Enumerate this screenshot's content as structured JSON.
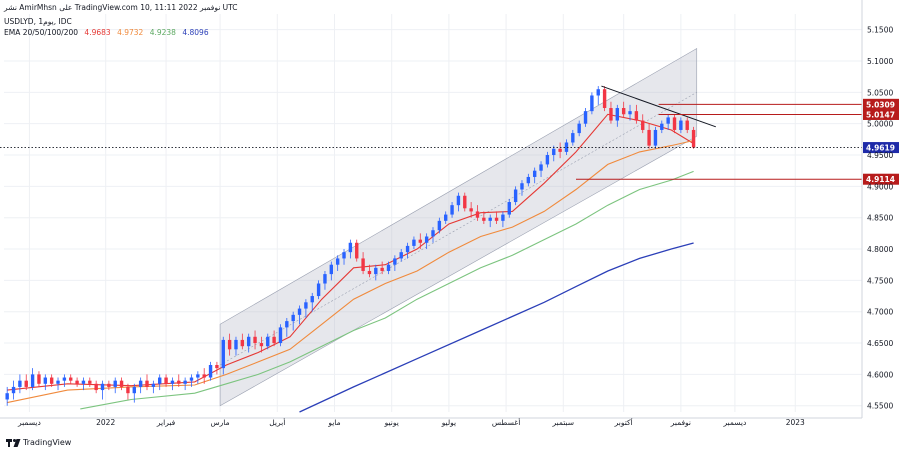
{
  "header": {
    "top_line": "نشر AmirMhsn على TradingView.com 10, نوفمبر 2022 11:11 UTC",
    "symbol_line": "USDLYD, 1يوم, IDC",
    "ema_label": "EMA 20/50/100/200",
    "ema_values": [
      "4.9683",
      "4.9732",
      "4.9238",
      "4.8096"
    ]
  },
  "watermark": "TradingView",
  "colors": {
    "up": "#2962ff",
    "down": "#f23645",
    "ema20": "#e53935",
    "ema50": "#f08a3c",
    "ema100": "#7cc47f",
    "ema200": "#2b3fb8",
    "channel": "#b8bbc8",
    "label_red": "#b71c1c",
    "label_blue": "#1e2aa8",
    "grid": "#eef0f4",
    "axis_text": "#131722"
  },
  "chart_data": {
    "type": "candlestick",
    "title": "USDLYD, 1يوم, IDC",
    "ylim": [
      4.54,
      5.175
    ],
    "y_ticks": [
      4.55,
      4.6,
      4.65,
      4.7,
      4.75,
      4.8,
      4.85,
      4.9,
      4.95,
      5.0,
      5.05,
      5.1,
      5.15
    ],
    "y_tick_labels": [
      "4.5500",
      "4.6000",
      "4.6500",
      "4.7000",
      "4.7500",
      "4.8000",
      "4.8500",
      "4.9000",
      "4.9500",
      "5.0000",
      "5.0500",
      "5.1000",
      "5.1500"
    ],
    "x_range_months": [
      0,
      13.5
    ],
    "x_ticks": [
      {
        "pos": 0.4,
        "label": "ديسمبر"
      },
      {
        "pos": 1.6,
        "label": "2022"
      },
      {
        "pos": 2.55,
        "label": "فبراير"
      },
      {
        "pos": 3.4,
        "label": "مارس"
      },
      {
        "pos": 4.3,
        "label": "أبريل"
      },
      {
        "pos": 5.2,
        "label": "مايو"
      },
      {
        "pos": 6.1,
        "label": "يونيو"
      },
      {
        "pos": 7.0,
        "label": "يوليو"
      },
      {
        "pos": 7.9,
        "label": "أغسطس"
      },
      {
        "pos": 8.8,
        "label": "سبتمبر"
      },
      {
        "pos": 9.75,
        "label": "أكتوبر"
      },
      {
        "pos": 10.65,
        "label": "نوفمبر"
      },
      {
        "pos": 11.5,
        "label": "ديسمبر"
      },
      {
        "pos": 12.45,
        "label": "2023"
      }
    ],
    "ohlc": [
      [
        0.05,
        4.56,
        4.58,
        4.55,
        4.57
      ],
      [
        0.15,
        4.57,
        4.59,
        4.56,
        4.58
      ],
      [
        0.25,
        4.58,
        4.6,
        4.57,
        4.59
      ],
      [
        0.35,
        4.59,
        4.6,
        4.575,
        4.58
      ],
      [
        0.45,
        4.58,
        4.61,
        4.575,
        4.6
      ],
      [
        0.55,
        4.6,
        4.605,
        4.58,
        4.585
      ],
      [
        0.65,
        4.585,
        4.6,
        4.575,
        4.595
      ],
      [
        0.75,
        4.595,
        4.6,
        4.58,
        4.585
      ],
      [
        0.85,
        4.585,
        4.595,
        4.575,
        4.59
      ],
      [
        0.95,
        4.59,
        4.6,
        4.58,
        4.595
      ],
      [
        1.05,
        4.595,
        4.6,
        4.585,
        4.59
      ],
      [
        1.15,
        4.59,
        4.595,
        4.58,
        4.585
      ],
      [
        1.25,
        4.585,
        4.595,
        4.575,
        4.59
      ],
      [
        1.35,
        4.59,
        4.595,
        4.58,
        4.585
      ],
      [
        1.45,
        4.585,
        4.59,
        4.57,
        4.575
      ],
      [
        1.55,
        4.575,
        4.59,
        4.56,
        4.585
      ],
      [
        1.65,
        4.585,
        4.59,
        4.575,
        4.58
      ],
      [
        1.75,
        4.58,
        4.595,
        4.57,
        4.59
      ],
      [
        1.85,
        4.59,
        4.595,
        4.575,
        4.58
      ],
      [
        1.95,
        4.58,
        4.585,
        4.56,
        4.57
      ],
      [
        2.05,
        4.57,
        4.585,
        4.555,
        4.58
      ],
      [
        2.15,
        4.58,
        4.595,
        4.57,
        4.59
      ],
      [
        2.25,
        4.59,
        4.6,
        4.575,
        4.58
      ],
      [
        2.35,
        4.58,
        4.59,
        4.57,
        4.585
      ],
      [
        2.45,
        4.585,
        4.6,
        4.575,
        4.595
      ],
      [
        2.55,
        4.595,
        4.6,
        4.58,
        4.585
      ],
      [
        2.65,
        4.585,
        4.595,
        4.575,
        4.59
      ],
      [
        2.75,
        4.59,
        4.6,
        4.58,
        4.585
      ],
      [
        2.85,
        4.585,
        4.595,
        4.575,
        4.59
      ],
      [
        2.95,
        4.59,
        4.6,
        4.58,
        4.595
      ],
      [
        3.05,
        4.595,
        4.605,
        4.585,
        4.6
      ],
      [
        3.15,
        4.6,
        4.61,
        4.585,
        4.595
      ],
      [
        3.25,
        4.595,
        4.62,
        4.59,
        4.615
      ],
      [
        3.35,
        4.615,
        4.62,
        4.6,
        4.61
      ],
      [
        3.45,
        4.61,
        4.66,
        4.6,
        4.655
      ],
      [
        3.55,
        4.655,
        4.665,
        4.63,
        4.64
      ],
      [
        3.65,
        4.64,
        4.66,
        4.63,
        4.655
      ],
      [
        3.75,
        4.655,
        4.665,
        4.64,
        4.645
      ],
      [
        3.85,
        4.645,
        4.665,
        4.635,
        4.66
      ],
      [
        3.95,
        4.66,
        4.67,
        4.64,
        4.65
      ],
      [
        4.05,
        4.65,
        4.66,
        4.635,
        4.645
      ],
      [
        4.15,
        4.645,
        4.665,
        4.64,
        4.66
      ],
      [
        4.25,
        4.66,
        4.67,
        4.645,
        4.65
      ],
      [
        4.35,
        4.65,
        4.68,
        4.645,
        4.675
      ],
      [
        4.45,
        4.675,
        4.69,
        4.66,
        4.685
      ],
      [
        4.55,
        4.685,
        4.7,
        4.67,
        4.695
      ],
      [
        4.65,
        4.695,
        4.71,
        4.68,
        4.705
      ],
      [
        4.75,
        4.705,
        4.72,
        4.69,
        4.715
      ],
      [
        4.85,
        4.715,
        4.73,
        4.7,
        4.725
      ],
      [
        4.95,
        4.725,
        4.75,
        4.72,
        4.745
      ],
      [
        5.05,
        4.745,
        4.765,
        4.735,
        4.76
      ],
      [
        5.15,
        4.76,
        4.78,
        4.75,
        4.775
      ],
      [
        5.25,
        4.775,
        4.79,
        4.765,
        4.785
      ],
      [
        5.35,
        4.785,
        4.8,
        4.775,
        4.795
      ],
      [
        5.45,
        4.795,
        4.815,
        4.785,
        4.81
      ],
      [
        5.55,
        4.81,
        4.815,
        4.78,
        4.785
      ],
      [
        5.65,
        4.785,
        4.795,
        4.76,
        4.765
      ],
      [
        5.75,
        4.765,
        4.775,
        4.755,
        4.76
      ],
      [
        5.85,
        4.76,
        4.775,
        4.75,
        4.77
      ],
      [
        5.95,
        4.77,
        4.78,
        4.76,
        4.765
      ],
      [
        6.05,
        4.765,
        4.78,
        4.76,
        4.775
      ],
      [
        6.15,
        4.775,
        4.79,
        4.765,
        4.785
      ],
      [
        6.25,
        4.785,
        4.8,
        4.78,
        4.795
      ],
      [
        6.35,
        4.795,
        4.81,
        4.785,
        4.805
      ],
      [
        6.45,
        4.805,
        4.82,
        4.8,
        4.815
      ],
      [
        6.55,
        4.815,
        4.825,
        4.8,
        4.81
      ],
      [
        6.65,
        4.81,
        4.825,
        4.8,
        4.82
      ],
      [
        6.75,
        4.82,
        4.835,
        4.81,
        4.83
      ],
      [
        6.85,
        4.83,
        4.85,
        4.825,
        4.845
      ],
      [
        6.95,
        4.845,
        4.86,
        4.84,
        4.855
      ],
      [
        7.05,
        4.855,
        4.875,
        4.85,
        4.87
      ],
      [
        7.15,
        4.87,
        4.89,
        4.86,
        4.885
      ],
      [
        7.25,
        4.885,
        4.89,
        4.86,
        4.865
      ],
      [
        7.35,
        4.865,
        4.875,
        4.85,
        4.86
      ],
      [
        7.45,
        4.86,
        4.87,
        4.845,
        4.85
      ],
      [
        7.55,
        4.85,
        4.86,
        4.84,
        4.845
      ],
      [
        7.65,
        4.845,
        4.855,
        4.835,
        4.85
      ],
      [
        7.75,
        4.85,
        4.86,
        4.84,
        4.845
      ],
      [
        7.85,
        4.845,
        4.86,
        4.835,
        4.855
      ],
      [
        7.95,
        4.855,
        4.88,
        4.85,
        4.875
      ],
      [
        8.05,
        4.875,
        4.9,
        4.87,
        4.895
      ],
      [
        8.15,
        4.895,
        4.91,
        4.885,
        4.905
      ],
      [
        8.25,
        4.905,
        4.92,
        4.9,
        4.915
      ],
      [
        8.35,
        4.915,
        4.93,
        4.905,
        4.925
      ],
      [
        8.45,
        4.925,
        4.94,
        4.915,
        4.935
      ],
      [
        8.55,
        4.935,
        4.955,
        4.93,
        4.95
      ],
      [
        8.65,
        4.95,
        4.965,
        4.94,
        4.96
      ],
      [
        8.75,
        4.96,
        4.97,
        4.945,
        4.955
      ],
      [
        8.85,
        4.955,
        4.975,
        4.95,
        4.97
      ],
      [
        8.95,
        4.97,
        4.99,
        4.965,
        4.985
      ],
      [
        9.05,
        4.985,
        5.005,
        4.98,
        5.0
      ],
      [
        9.15,
        5.0,
        5.025,
        4.995,
        5.02
      ],
      [
        9.25,
        5.02,
        5.05,
        5.015,
        5.045
      ],
      [
        9.35,
        5.045,
        5.06,
        5.03,
        5.055
      ],
      [
        9.45,
        5.055,
        5.06,
        5.02,
        5.025
      ],
      [
        9.55,
        5.025,
        5.035,
        5.0,
        5.005
      ],
      [
        9.65,
        5.005,
        5.03,
        4.995,
        5.025
      ],
      [
        9.75,
        5.025,
        5.035,
        5.01,
        5.015
      ],
      [
        9.85,
        5.015,
        5.03,
        5.005,
        5.02
      ],
      [
        9.95,
        5.02,
        5.03,
        5.0,
        5.005
      ],
      [
        10.05,
        5.005,
        5.015,
        4.985,
        4.99
      ],
      [
        10.15,
        4.99,
        5.0,
        4.96,
        4.965
      ],
      [
        10.25,
        4.965,
        4.995,
        4.96,
        4.99
      ],
      [
        10.35,
        4.99,
        5.005,
        4.985,
        5.0
      ],
      [
        10.45,
        5.0,
        5.015,
        4.99,
        5.01
      ],
      [
        10.55,
        5.01,
        5.015,
        4.985,
        4.99
      ],
      [
        10.65,
        4.99,
        5.01,
        4.985,
        5.005
      ],
      [
        10.75,
        5.005,
        5.01,
        4.985,
        4.99
      ],
      [
        10.85,
        4.99,
        4.995,
        4.96,
        4.962
      ]
    ],
    "ema20": [
      [
        0.05,
        4.575
      ],
      [
        1.0,
        4.585
      ],
      [
        2.0,
        4.582
      ],
      [
        3.0,
        4.588
      ],
      [
        3.5,
        4.615
      ],
      [
        4.0,
        4.635
      ],
      [
        4.5,
        4.66
      ],
      [
        5.0,
        4.72
      ],
      [
        5.5,
        4.77
      ],
      [
        6.0,
        4.775
      ],
      [
        6.5,
        4.8
      ],
      [
        7.0,
        4.84
      ],
      [
        7.5,
        4.858
      ],
      [
        8.0,
        4.86
      ],
      [
        8.5,
        4.905
      ],
      [
        9.0,
        4.955
      ],
      [
        9.5,
        5.015
      ],
      [
        10.0,
        5.005
      ],
      [
        10.5,
        4.99
      ],
      [
        10.85,
        4.9683
      ]
    ],
    "ema50": [
      [
        0.05,
        4.555
      ],
      [
        1.0,
        4.575
      ],
      [
        2.0,
        4.58
      ],
      [
        3.0,
        4.583
      ],
      [
        3.5,
        4.6
      ],
      [
        4.0,
        4.62
      ],
      [
        4.5,
        4.64
      ],
      [
        5.0,
        4.68
      ],
      [
        5.5,
        4.72
      ],
      [
        6.0,
        4.745
      ],
      [
        6.5,
        4.765
      ],
      [
        7.0,
        4.795
      ],
      [
        7.5,
        4.82
      ],
      [
        8.0,
        4.835
      ],
      [
        8.5,
        4.86
      ],
      [
        9.0,
        4.895
      ],
      [
        9.5,
        4.935
      ],
      [
        10.0,
        4.955
      ],
      [
        10.5,
        4.965
      ],
      [
        10.85,
        4.9732
      ]
    ],
    "ema100": [
      [
        1.2,
        4.545
      ],
      [
        2.0,
        4.56
      ],
      [
        3.0,
        4.57
      ],
      [
        3.5,
        4.585
      ],
      [
        4.0,
        4.6
      ],
      [
        4.5,
        4.62
      ],
      [
        5.0,
        4.645
      ],
      [
        5.5,
        4.67
      ],
      [
        6.0,
        4.69
      ],
      [
        6.5,
        4.72
      ],
      [
        7.0,
        4.745
      ],
      [
        7.5,
        4.77
      ],
      [
        8.0,
        4.79
      ],
      [
        8.5,
        4.815
      ],
      [
        9.0,
        4.84
      ],
      [
        9.5,
        4.87
      ],
      [
        10.0,
        4.895
      ],
      [
        10.5,
        4.91
      ],
      [
        10.85,
        4.9238
      ]
    ],
    "ema200": [
      [
        4.65,
        4.54
      ],
      [
        5.5,
        4.58
      ],
      [
        6.5,
        4.625
      ],
      [
        7.5,
        4.67
      ],
      [
        8.5,
        4.715
      ],
      [
        9.0,
        4.74
      ],
      [
        9.5,
        4.765
      ],
      [
        10.0,
        4.785
      ],
      [
        10.5,
        4.8
      ],
      [
        10.85,
        4.8096
      ]
    ],
    "channel": {
      "x_start": 3.4,
      "x_end": 10.9,
      "upper": [
        4.68,
        5.12
      ],
      "lower": [
        4.55,
        4.98
      ]
    },
    "trendline": {
      "x": [
        9.4,
        11.2
      ],
      "y": [
        5.06,
        4.995
      ]
    },
    "h_levels": [
      {
        "x_start": 10.3,
        "y": 5.0309,
        "label": "5.0309",
        "color": "red"
      },
      {
        "x_start": 10.3,
        "y": 5.0147,
        "label": "5.0147",
        "color": "red"
      },
      {
        "x_start": 9.0,
        "y": 4.9114,
        "label": "4.9114",
        "color": "red"
      }
    ],
    "last_price": {
      "y": 4.9619,
      "label": "4.9619"
    }
  }
}
